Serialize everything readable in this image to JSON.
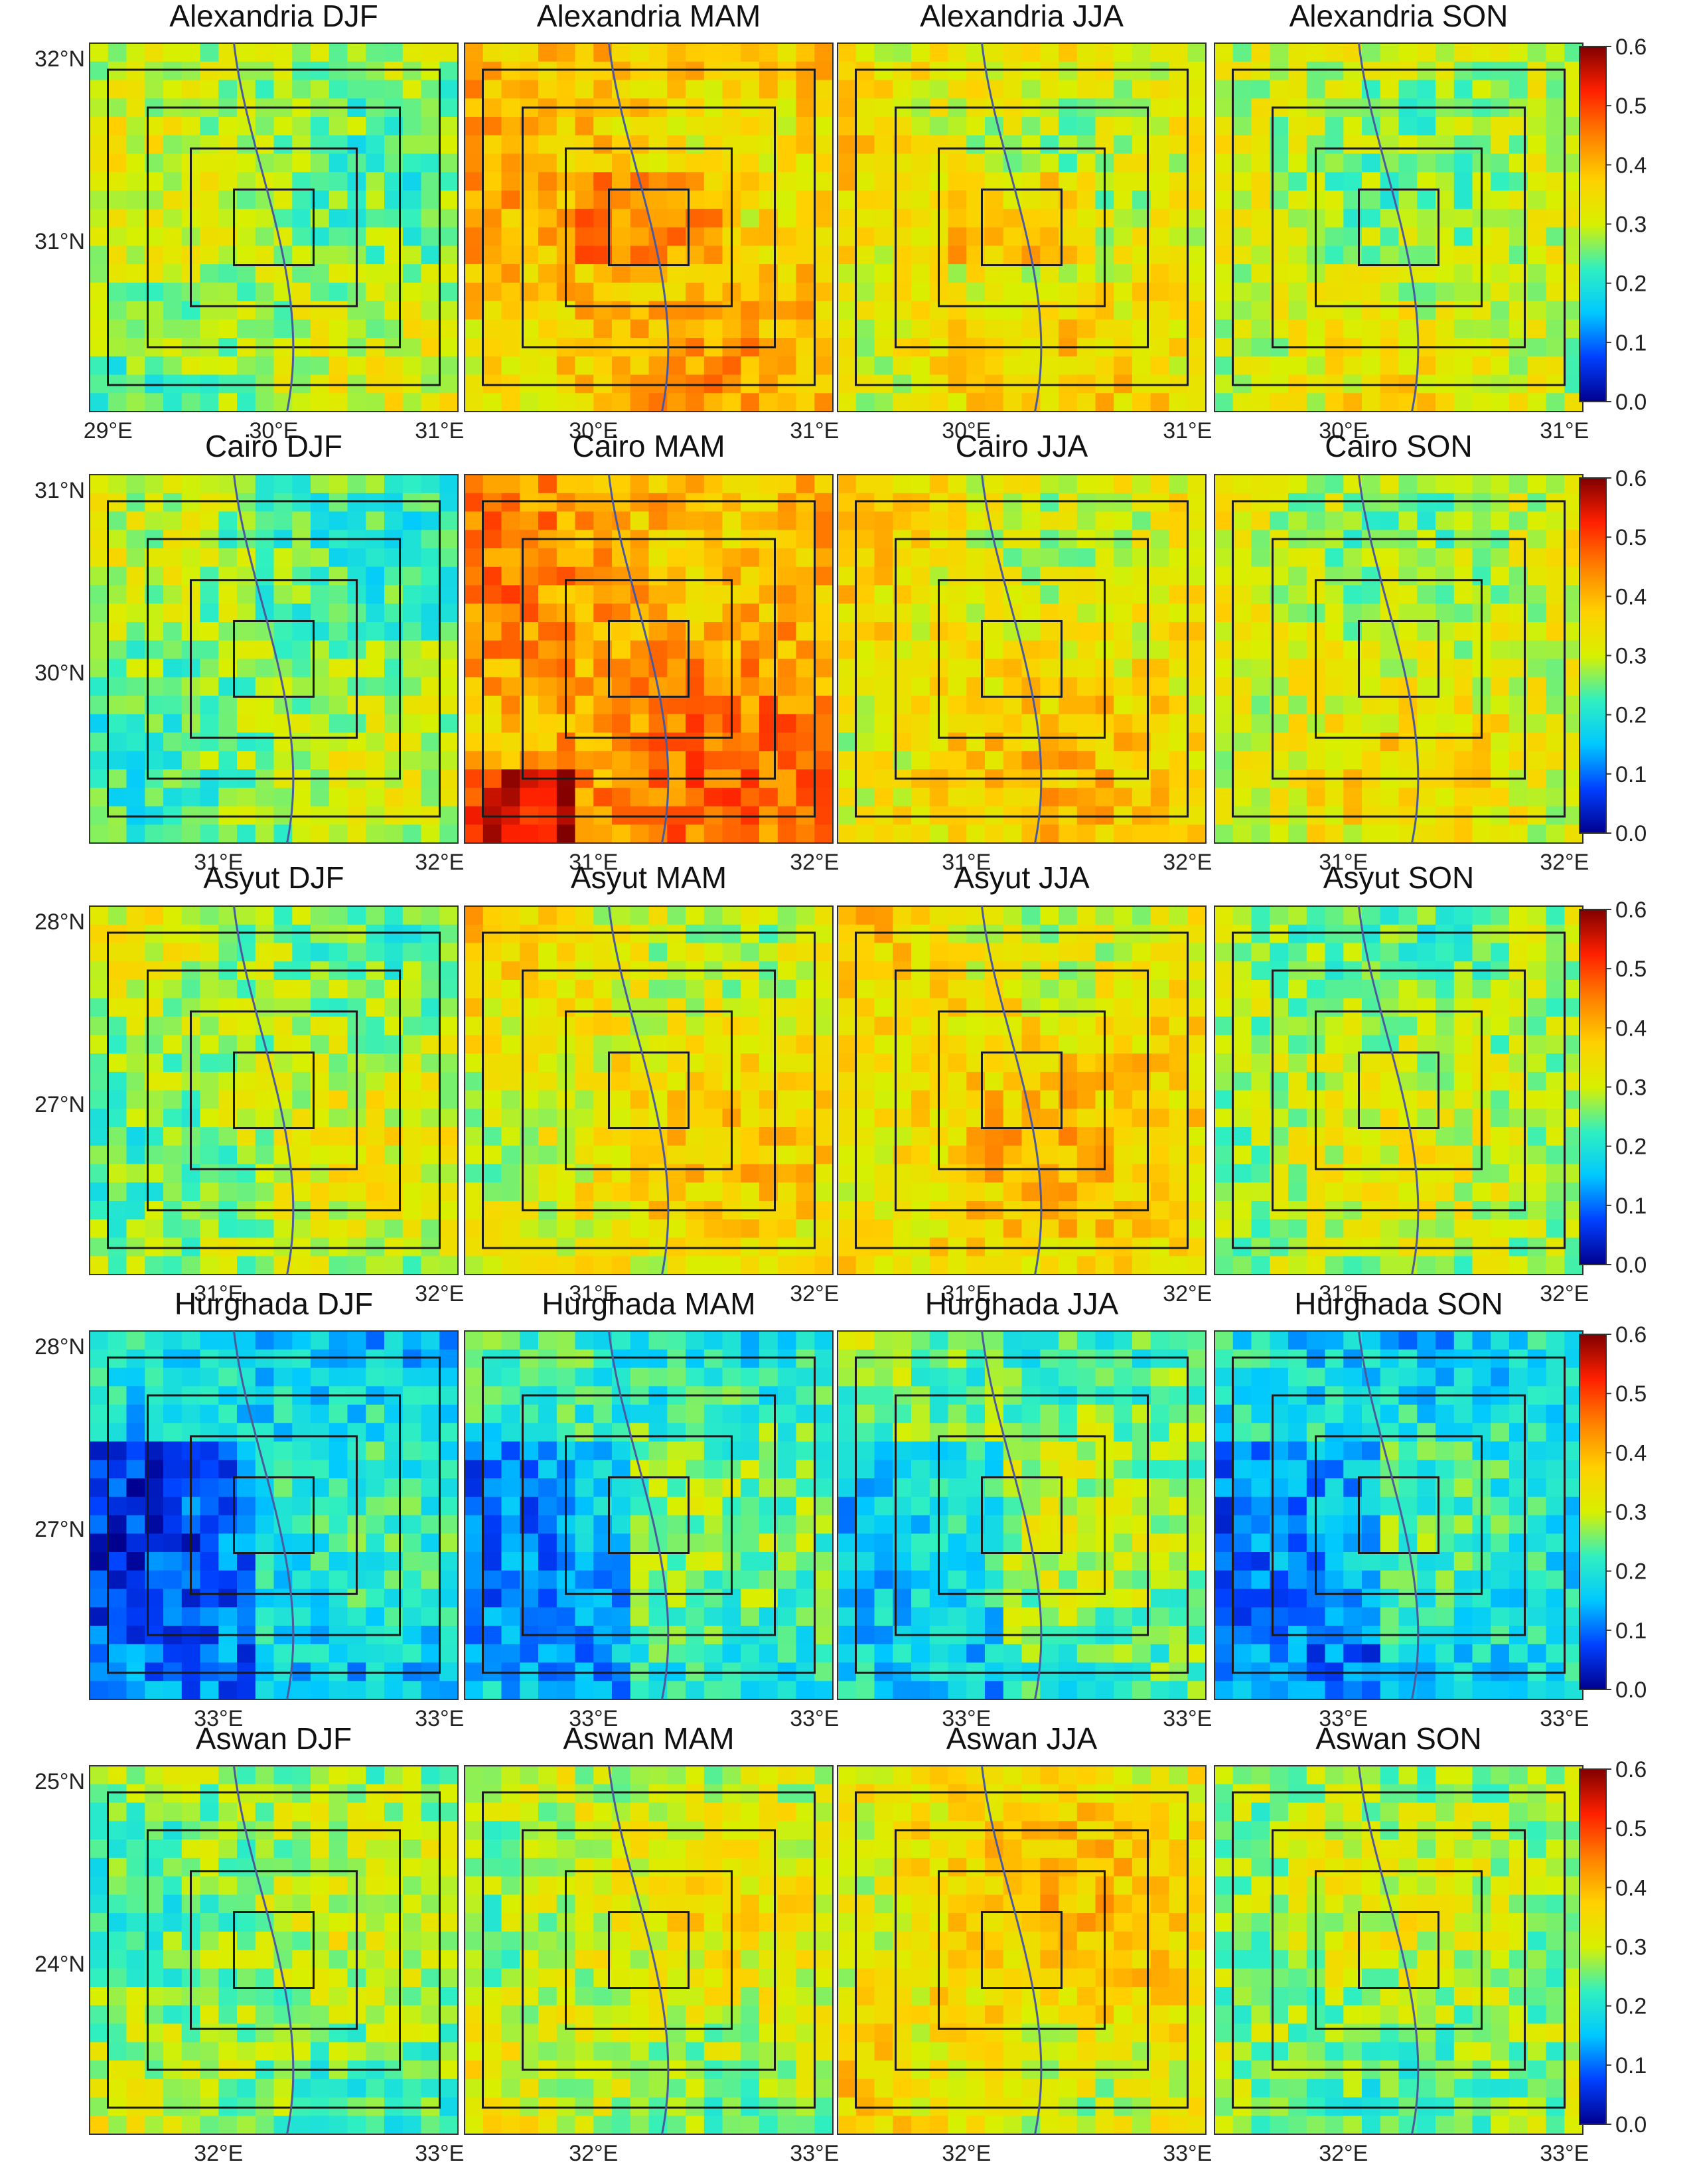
{
  "figure": {
    "rows": [
      {
        "city": "Alexandria",
        "lat_ticks": [
          "32°N",
          "31°N"
        ],
        "panels": [
          {
            "title": "Alexandria DJF",
            "season": "DJF",
            "mean_aod": 0.28,
            "x_ticks": [
              "29°E",
              "30°E",
              "31°E"
            ]
          },
          {
            "title": "Alexandria MAM",
            "season": "MAM",
            "mean_aod": 0.38,
            "x_ticks": [
              "30°E",
              "31°E"
            ]
          },
          {
            "title": "Alexandria JJA",
            "season": "JJA",
            "mean_aod": 0.33,
            "x_ticks": [
              "30°E",
              "31°E"
            ]
          },
          {
            "title": "Alexandria SON",
            "season": "SON",
            "mean_aod": 0.3,
            "x_ticks": [
              "30°E",
              "31°E"
            ]
          }
        ]
      },
      {
        "city": "Cairo",
        "lat_ticks": [
          "31°N",
          "30°N"
        ],
        "panels": [
          {
            "title": "Cairo DJF",
            "season": "DJF",
            "mean_aod": 0.26,
            "x_ticks": [
              "31°E",
              "32°E"
            ]
          },
          {
            "title": "Cairo MAM",
            "season": "MAM",
            "mean_aod": 0.42,
            "x_ticks": [
              "31°E",
              "32°E"
            ]
          },
          {
            "title": "Cairo JJA",
            "season": "JJA",
            "mean_aod": 0.34,
            "x_ticks": [
              "31°E",
              "32°E"
            ]
          },
          {
            "title": "Cairo SON",
            "season": "SON",
            "mean_aod": 0.31,
            "x_ticks": [
              "31°E",
              "32°E"
            ]
          }
        ]
      },
      {
        "city": "Asyut",
        "lat_ticks": [
          "28°N",
          "27°N"
        ],
        "panels": [
          {
            "title": "Asyut DJF",
            "season": "DJF",
            "mean_aod": 0.28,
            "x_ticks": [
              "31°E",
              "32°E"
            ]
          },
          {
            "title": "Asyut MAM",
            "season": "MAM",
            "mean_aod": 0.33,
            "x_ticks": [
              "31°E",
              "32°E"
            ]
          },
          {
            "title": "Asyut JJA",
            "season": "JJA",
            "mean_aod": 0.35,
            "x_ticks": [
              "31°E",
              "32°E"
            ]
          },
          {
            "title": "Asyut SON",
            "season": "SON",
            "mean_aod": 0.28,
            "x_ticks": [
              "31°E",
              "32°E"
            ]
          }
        ]
      },
      {
        "city": "Hurghada",
        "lat_ticks": [
          "28°N",
          "27°N"
        ],
        "panels": [
          {
            "title": "Hurghada DJF",
            "season": "DJF",
            "mean_aod": 0.18,
            "x_ticks": [
              "33°E",
              "33°E"
            ]
          },
          {
            "title": "Hurghada MAM",
            "season": "MAM",
            "mean_aod": 0.22,
            "x_ticks": [
              "33°E",
              "33°E"
            ]
          },
          {
            "title": "Hurghada JJA",
            "season": "JJA",
            "mean_aod": 0.25,
            "x_ticks": [
              "33°E",
              "33°E"
            ]
          },
          {
            "title": "Hurghada SON",
            "season": "SON",
            "mean_aod": 0.19,
            "x_ticks": [
              "33°E",
              "33°E"
            ]
          }
        ]
      },
      {
        "city": "Aswan",
        "lat_ticks": [
          "25°N",
          "24°N"
        ],
        "panels": [
          {
            "title": "Aswan DJF",
            "season": "DJF",
            "mean_aod": 0.27,
            "x_ticks": [
              "32°E",
              "33°E"
            ]
          },
          {
            "title": "Aswan MAM",
            "season": "MAM",
            "mean_aod": 0.3,
            "x_ticks": [
              "32°E",
              "33°E"
            ]
          },
          {
            "title": "Aswan JJA",
            "season": "JJA",
            "mean_aod": 0.34,
            "x_ticks": [
              "32°E",
              "33°E"
            ]
          },
          {
            "title": "Aswan SON",
            "season": "SON",
            "mean_aod": 0.27,
            "x_ticks": [
              "32°E",
              "33°E"
            ]
          }
        ]
      }
    ]
  },
  "chart_data": {
    "type": "heatmap",
    "layout": "5 rows (cities) x 4 columns (seasons), one colorbar per row",
    "colorbar": {
      "min": 0.0,
      "max": 0.6,
      "ticks": [
        "0.0",
        "0.1",
        "0.2",
        "0.3",
        "0.4",
        "0.5",
        "0.6"
      ],
      "colors": [
        "#00008f",
        "#0040ff",
        "#00c8ff",
        "#30f0c0",
        "#d8f000",
        "#ffd000",
        "#ff8000",
        "#ff2000",
        "#800000"
      ]
    },
    "nested_boxes_per_panel": 4,
    "seasons": [
      "DJF",
      "MAM",
      "JJA",
      "SON"
    ],
    "cities": [
      "Alexandria",
      "Cairo",
      "Asyut",
      "Hurghada",
      "Aswan"
    ],
    "mean_values": {
      "Alexandria": [
        0.28,
        0.38,
        0.33,
        0.3
      ],
      "Cairo": [
        0.26,
        0.42,
        0.34,
        0.31
      ],
      "Asyut": [
        0.28,
        0.33,
        0.35,
        0.28
      ],
      "Hurghada": [
        0.18,
        0.22,
        0.25,
        0.19
      ],
      "Aswan": [
        0.27,
        0.3,
        0.34,
        0.27
      ]
    }
  }
}
